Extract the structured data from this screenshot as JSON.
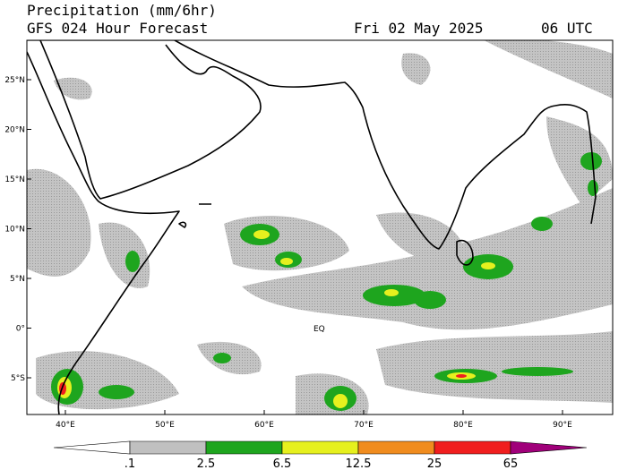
{
  "header": {
    "title": "Precipitation (mm/6hr)",
    "subtitle": "GFS 024 Hour Forecast",
    "date": "Fri 02 May 2025",
    "time": "06 UTC"
  },
  "map": {
    "lat_labels": [
      "25°N",
      "20°N",
      "15°N",
      "10°N",
      "5°N",
      "0°",
      "5°S"
    ],
    "lon_labels": [
      "40°E",
      "50°E",
      "60°E",
      "70°E",
      "80°E",
      "90°E"
    ],
    "equator_label": "EQ"
  },
  "colorbar": {
    "labels": [
      ".1",
      "2.5",
      "6.5",
      "12.5",
      "25",
      "65"
    ],
    "colors": [
      "#ffffff",
      "#c0c0c0",
      "#1ea51e",
      "#e6f01e",
      "#f08c1e",
      "#f01e1e",
      "#a0007a"
    ]
  }
}
